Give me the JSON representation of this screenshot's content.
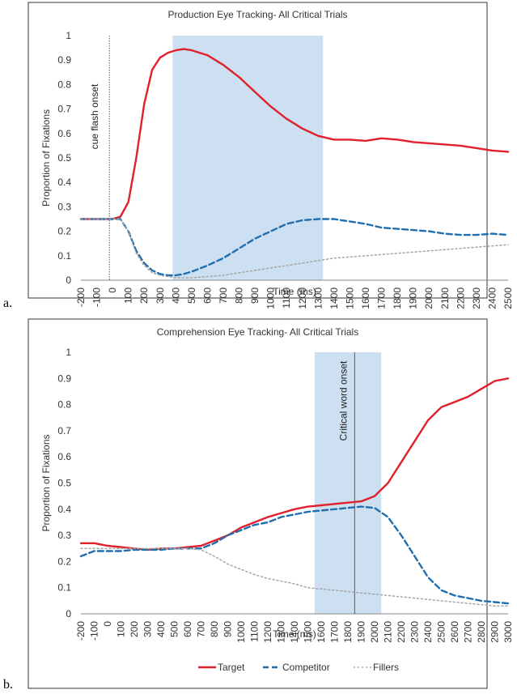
{
  "panel_labels": [
    "a.",
    "b."
  ],
  "colors": {
    "target": "#e0202a",
    "competitor": "#1f6fb0",
    "fillers": "#a6a6a6",
    "shade": "#bcd5ec",
    "grid_text": "#333333",
    "frame": "#333333"
  },
  "legend": {
    "items": [
      "Target",
      "Competitor",
      "Fillers"
    ],
    "placement": "bottom"
  },
  "chart_data": [
    {
      "type": "line",
      "title": "Production Eye Tracking- All Critical Trials",
      "xlabel": "Time (ms)",
      "ylabel": "Proportion of Fixations",
      "xlim": [
        -200,
        2500
      ],
      "ylim": [
        0,
        1
      ],
      "x_ticks": [
        "-200",
        "-100",
        "0",
        "100",
        "200",
        "300",
        "400",
        "500",
        "600",
        "700",
        "800",
        "900",
        "1000",
        "1100",
        "1200",
        "1300",
        "1400",
        "1500",
        "1600",
        "1700",
        "1800",
        "1900",
        "2000",
        "2100",
        "2200",
        "2300",
        "2400",
        "2500"
      ],
      "y_ticks": [
        "0",
        "0.1",
        "0.2",
        "0.3",
        "0.4",
        "0.5",
        "0.6",
        "0.7",
        "0.8",
        "0.9",
        "1"
      ],
      "shaded_region": [
        380,
        1330
      ],
      "vline": {
        "x": -20,
        "label": "cue flash onset"
      },
      "series": [
        {
          "name": "Target",
          "style": "solid",
          "x": [
            -200,
            -100,
            0,
            50,
            100,
            150,
            200,
            250,
            300,
            350,
            400,
            450,
            500,
            600,
            700,
            800,
            900,
            1000,
            1100,
            1200,
            1300,
            1400,
            1500,
            1600,
            1700,
            1800,
            1900,
            2000,
            2100,
            2200,
            2300,
            2400,
            2500
          ],
          "y": [
            0.25,
            0.25,
            0.25,
            0.26,
            0.32,
            0.5,
            0.72,
            0.86,
            0.91,
            0.93,
            0.94,
            0.945,
            0.94,
            0.92,
            0.88,
            0.83,
            0.77,
            0.71,
            0.66,
            0.62,
            0.59,
            0.575,
            0.575,
            0.57,
            0.58,
            0.575,
            0.565,
            0.56,
            0.555,
            0.55,
            0.54,
            0.53,
            0.525
          ]
        },
        {
          "name": "Competitor",
          "style": "dashed",
          "x": [
            -200,
            -100,
            0,
            50,
            100,
            150,
            200,
            250,
            300,
            350,
            400,
            450,
            500,
            600,
            700,
            800,
            900,
            1000,
            1100,
            1200,
            1300,
            1400,
            1500,
            1600,
            1700,
            1800,
            1900,
            2000,
            2100,
            2200,
            2300,
            2400,
            2500
          ],
          "y": [
            0.25,
            0.25,
            0.25,
            0.25,
            0.2,
            0.12,
            0.07,
            0.04,
            0.025,
            0.02,
            0.02,
            0.025,
            0.035,
            0.06,
            0.09,
            0.13,
            0.17,
            0.2,
            0.23,
            0.245,
            0.25,
            0.25,
            0.24,
            0.23,
            0.215,
            0.21,
            0.205,
            0.2,
            0.19,
            0.185,
            0.185,
            0.19,
            0.185
          ]
        },
        {
          "name": "Fillers",
          "style": "dotted",
          "x": [
            -200,
            -100,
            0,
            50,
            100,
            150,
            200,
            250,
            300,
            350,
            400,
            450,
            500,
            600,
            700,
            800,
            900,
            1000,
            1100,
            1200,
            1300,
            1400,
            1500,
            1600,
            1700,
            1800,
            1900,
            2000,
            2100,
            2200,
            2300,
            2400,
            2500
          ],
          "y": [
            0.25,
            0.25,
            0.25,
            0.25,
            0.2,
            0.11,
            0.06,
            0.03,
            0.02,
            0.015,
            0.01,
            0.01,
            0.01,
            0.015,
            0.02,
            0.03,
            0.04,
            0.05,
            0.06,
            0.07,
            0.08,
            0.09,
            0.095,
            0.1,
            0.105,
            0.11,
            0.115,
            0.12,
            0.125,
            0.13,
            0.135,
            0.14,
            0.145
          ]
        }
      ]
    },
    {
      "type": "line",
      "title": "Comprehension Eye Tracking- All Critical Trials",
      "xlabel": "Time (ms)",
      "ylabel": "Proportion of Fixations",
      "xlim": [
        -200,
        3000
      ],
      "ylim": [
        0,
        1
      ],
      "x_ticks": [
        "-200",
        "-100",
        "0",
        "100",
        "200",
        "300",
        "400",
        "500",
        "600",
        "700",
        "800",
        "900",
        "1000",
        "1100",
        "1200",
        "1300",
        "1400",
        "1500",
        "1600",
        "1700",
        "1800",
        "1900",
        "2000",
        "2100",
        "2200",
        "2300",
        "2400",
        "2500",
        "2600",
        "2700",
        "2800",
        "2900",
        "3000"
      ],
      "y_ticks": [
        "0",
        "0.1",
        "0.2",
        "0.3",
        "0.4",
        "0.5",
        "0.6",
        "0.7",
        "0.8",
        "0.9",
        "1"
      ],
      "shaded_region": [
        1550,
        2050
      ],
      "vline": {
        "x": 1850,
        "label": "Critical word onset"
      },
      "series": [
        {
          "name": "Target",
          "style": "solid",
          "x": [
            -200,
            -100,
            0,
            100,
            200,
            300,
            400,
            500,
            600,
            700,
            800,
            900,
            1000,
            1100,
            1200,
            1300,
            1400,
            1500,
            1600,
            1700,
            1800,
            1900,
            2000,
            2100,
            2200,
            2300,
            2400,
            2500,
            2600,
            2700,
            2800,
            2900,
            3000
          ],
          "y": [
            0.27,
            0.27,
            0.26,
            0.255,
            0.25,
            0.245,
            0.25,
            0.25,
            0.255,
            0.26,
            0.28,
            0.3,
            0.33,
            0.35,
            0.37,
            0.385,
            0.4,
            0.41,
            0.415,
            0.42,
            0.425,
            0.43,
            0.45,
            0.5,
            0.58,
            0.66,
            0.74,
            0.79,
            0.81,
            0.83,
            0.86,
            0.89,
            0.9
          ]
        },
        {
          "name": "Competitor",
          "style": "dashed",
          "x": [
            -200,
            -100,
            0,
            100,
            200,
            300,
            400,
            500,
            600,
            700,
            800,
            900,
            1000,
            1100,
            1200,
            1300,
            1400,
            1500,
            1600,
            1700,
            1800,
            1900,
            2000,
            2100,
            2200,
            2300,
            2400,
            2500,
            2600,
            2700,
            2800,
            2900,
            3000
          ],
          "y": [
            0.22,
            0.24,
            0.24,
            0.24,
            0.245,
            0.245,
            0.245,
            0.25,
            0.25,
            0.25,
            0.27,
            0.3,
            0.32,
            0.34,
            0.35,
            0.37,
            0.38,
            0.39,
            0.395,
            0.4,
            0.405,
            0.41,
            0.405,
            0.37,
            0.3,
            0.22,
            0.14,
            0.09,
            0.07,
            0.06,
            0.05,
            0.045,
            0.04
          ]
        },
        {
          "name": "Fillers",
          "style": "dotted",
          "x": [
            -200,
            -100,
            0,
            100,
            200,
            300,
            400,
            500,
            600,
            700,
            800,
            900,
            1000,
            1100,
            1200,
            1300,
            1400,
            1500,
            1600,
            1700,
            1800,
            1900,
            2000,
            2100,
            2200,
            2300,
            2400,
            2500,
            2600,
            2700,
            2800,
            2900,
            3000
          ],
          "y": [
            0.25,
            0.25,
            0.25,
            0.25,
            0.25,
            0.25,
            0.25,
            0.25,
            0.25,
            0.245,
            0.22,
            0.19,
            0.17,
            0.15,
            0.135,
            0.125,
            0.115,
            0.1,
            0.095,
            0.09,
            0.085,
            0.08,
            0.075,
            0.07,
            0.065,
            0.06,
            0.055,
            0.05,
            0.045,
            0.04,
            0.035,
            0.03,
            0.03
          ]
        }
      ]
    }
  ]
}
